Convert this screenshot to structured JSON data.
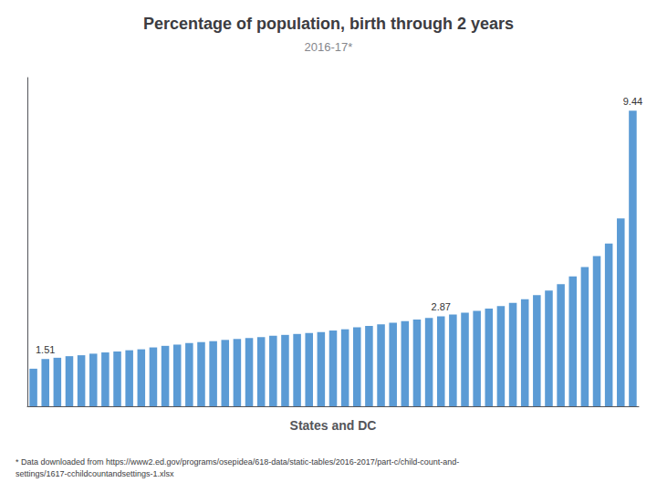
{
  "chart_data": {
    "type": "bar",
    "title": "Percentage of population, birth through 2 years",
    "subtitle": "2016-17*",
    "xlabel": "States and DC",
    "footnote": [
      "* Data downloaded from https://www2.ed.gov/programs/osepidea/618-data/static-tables/2016-2017/part-c/child-count-and-",
      "settings/1617-cchildcountandsettings-1.xlsx"
    ],
    "categories": [
      null,
      null,
      null,
      null,
      null,
      null,
      null,
      null,
      null,
      null,
      null,
      null,
      null,
      null,
      null,
      null,
      null,
      null,
      null,
      null,
      null,
      null,
      null,
      null,
      null,
      null,
      null,
      null,
      null,
      null,
      null,
      null,
      null,
      null,
      null,
      null,
      null,
      null,
      null,
      null,
      null,
      null,
      null,
      null,
      null,
      null,
      null,
      null,
      null,
      null,
      null
    ],
    "values": [
      1.2,
      1.51,
      1.55,
      1.6,
      1.63,
      1.68,
      1.72,
      1.75,
      1.79,
      1.82,
      1.88,
      1.93,
      1.97,
      2.02,
      2.05,
      2.08,
      2.12,
      2.15,
      2.18,
      2.21,
      2.25,
      2.28,
      2.31,
      2.34,
      2.37,
      2.42,
      2.46,
      2.52,
      2.57,
      2.62,
      2.67,
      2.72,
      2.77,
      2.82,
      2.87,
      2.93,
      2.99,
      3.05,
      3.12,
      3.2,
      3.3,
      3.42,
      3.55,
      3.7,
      3.9,
      4.15,
      4.45,
      4.8,
      5.2,
      6.0,
      9.44
    ],
    "annotations": [
      {
        "index": 1,
        "text": "1.51"
      },
      {
        "index": 34,
        "text": "2.87"
      },
      {
        "index": 50,
        "text": "9.44"
      }
    ],
    "color": "#5b9bd5",
    "ylim": [
      0,
      10.5
    ],
    "yticks": [],
    "grid": false,
    "tick_labels": false
  }
}
